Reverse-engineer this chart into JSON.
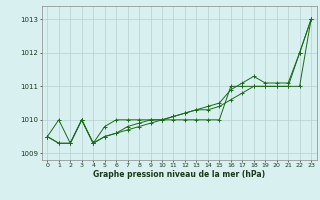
{
  "hours": [
    0,
    1,
    2,
    3,
    4,
    5,
    6,
    7,
    8,
    9,
    10,
    11,
    12,
    13,
    14,
    15,
    16,
    17,
    18,
    19,
    20,
    21,
    22,
    23
  ],
  "series1": [
    1009.5,
    1010.0,
    1009.3,
    1010.0,
    1009.3,
    1009.8,
    1010.0,
    1010.0,
    1010.0,
    1010.0,
    1010.0,
    1010.0,
    1010.0,
    1010.0,
    1010.0,
    1010.0,
    1011.0,
    1011.0,
    1011.0,
    1011.0,
    1011.0,
    1011.0,
    1011.0,
    1013.0
  ],
  "series2": [
    1009.5,
    1009.3,
    1009.3,
    1010.0,
    1009.3,
    1009.5,
    1009.6,
    1009.7,
    1009.8,
    1009.9,
    1010.0,
    1010.1,
    1010.2,
    1010.3,
    1010.3,
    1010.4,
    1010.6,
    1010.8,
    1011.0,
    1011.0,
    1011.0,
    1011.0,
    1012.0,
    1013.0
  ],
  "series3": [
    1009.5,
    1009.3,
    1009.3,
    1010.0,
    1009.3,
    1009.5,
    1009.6,
    1009.8,
    1009.9,
    1010.0,
    1010.0,
    1010.1,
    1010.2,
    1010.3,
    1010.4,
    1010.5,
    1010.9,
    1011.1,
    1011.3,
    1011.1,
    1011.1,
    1011.1,
    1012.0,
    1013.0
  ],
  "line_color": "#1a6b1a",
  "bg_color": "#d8f0f0",
  "grid_color": "#b8d0d0",
  "xlabel": "Graphe pression niveau de la mer (hPa)",
  "ylim": [
    1008.8,
    1013.4
  ],
  "yticks": [
    1009,
    1010,
    1011,
    1012,
    1013
  ],
  "xlim": [
    -0.5,
    23.5
  ]
}
